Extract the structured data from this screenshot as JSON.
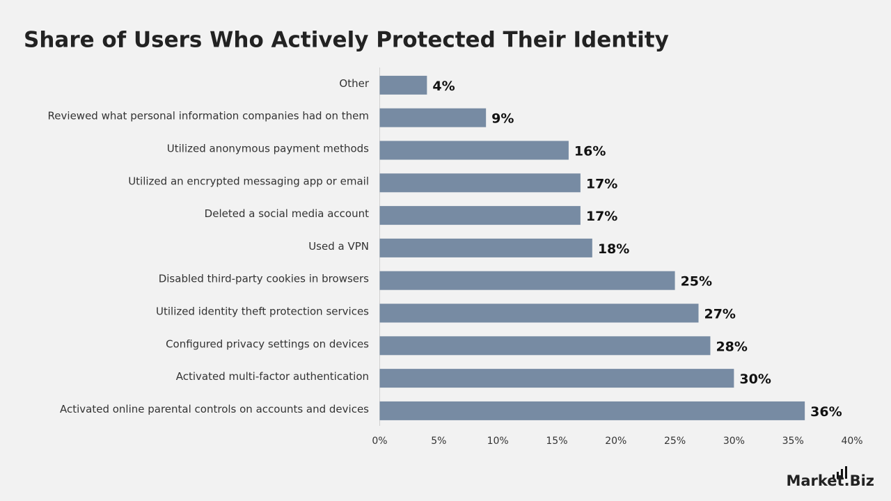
{
  "chart_data": {
    "type": "bar",
    "orientation": "horizontal",
    "title": "Share of Users Who Actively Protected Their Identity",
    "categories": [
      "Other",
      "Reviewed what personal information companies had on them",
      "Utilized anonymous payment methods",
      "Utilized an encrypted messaging app or email",
      "Deleted a social media account",
      "Used a VPN",
      "Disabled third-party cookies in browsers",
      "Utilized identity theft protection services",
      "Configured privacy settings on devices",
      "Activated multi-factor authentication",
      "Activated online parental controls on accounts and devices"
    ],
    "values": [
      4,
      9,
      16,
      17,
      17,
      18,
      25,
      27,
      28,
      30,
      36
    ],
    "value_labels": [
      "4%",
      "9%",
      "16%",
      "17%",
      "17%",
      "18%",
      "25%",
      "27%",
      "28%",
      "30%",
      "36%"
    ],
    "color": "#778ba3",
    "xlim": [
      0,
      40
    ],
    "xticks": [
      {
        "value": 0,
        "label": "0%"
      },
      {
        "value": 5,
        "label": "5%"
      },
      {
        "value": 10,
        "label": "10%"
      },
      {
        "value": 15,
        "label": "15%"
      },
      {
        "value": 20,
        "label": "20%"
      },
      {
        "value": 25,
        "label": "25%"
      },
      {
        "value": 30,
        "label": "30%"
      },
      {
        "value": 35,
        "label": "35%"
      },
      {
        "value": 40,
        "label": "40%"
      }
    ],
    "grid": false
  },
  "logo": "Market.Biz"
}
